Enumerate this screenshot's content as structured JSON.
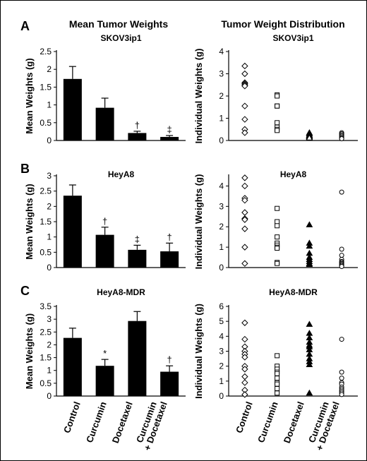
{
  "header": {
    "left_title": "Mean Tumor Weights",
    "right_title": "Tumor Weight Distribution"
  },
  "panel_labels": [
    "A",
    "B",
    "C"
  ],
  "x_categories": [
    "Control",
    "Curcumin",
    "Docetaxel",
    "Curcumin",
    "+ Docetaxel"
  ],
  "chart_data": [
    {
      "type": "bar",
      "title": "SKOV3ip1",
      "ylabel": "Mean Weights (g)",
      "ylim": [
        0,
        2.5
      ],
      "yticks": [
        "0",
        "0.5",
        "1",
        "1.5",
        "2",
        "2.5"
      ],
      "categories": [
        "Control",
        "Curcumin",
        "Docetaxel",
        "Curcumin + Docetaxel"
      ],
      "values": [
        1.73,
        0.92,
        0.21,
        0.1
      ],
      "errors": [
        0.35,
        0.27,
        0.05,
        0.04
      ],
      "annotations": [
        "",
        "",
        "†",
        "‡"
      ]
    },
    {
      "type": "scatter",
      "title": "SKOV3ip1",
      "ylabel": "Individual Weights (g)",
      "ylim": [
        0,
        4
      ],
      "yticks": [
        "0",
        "1",
        "2",
        "3",
        "4"
      ],
      "categories": [
        "Control",
        "Curcumin",
        "Docetaxel",
        "Curcumin + Docetaxel"
      ],
      "markers": [
        "diamond",
        "square",
        "triangle",
        "circle"
      ],
      "filled": [
        false,
        false,
        false,
        false
      ],
      "points": [
        [
          3.35,
          3.0,
          2.6,
          2.55,
          2.5,
          2.45,
          1.55,
          0.95,
          0.5,
          0.35
        ],
        [
          2.05,
          2.0,
          1.55,
          1.55,
          0.8,
          0.6,
          0.5,
          0.45
        ],
        [
          0.35,
          0.3,
          0.25,
          0.22,
          0.2,
          0.18,
          0.15,
          0.12
        ],
        [
          0.35,
          0.3,
          0.25,
          0.2,
          0.15,
          0.1,
          0.08
        ]
      ]
    },
    {
      "type": "bar",
      "title": "HeyA8",
      "ylabel": "Mean Weights (g)",
      "ylim": [
        0,
        3
      ],
      "yticks": [
        "0",
        "0.5",
        "1",
        "1.5",
        "2",
        "2.5",
        "3"
      ],
      "categories": [
        "Control",
        "Curcumin",
        "Docetaxel",
        "Curcumin + Docetaxel"
      ],
      "values": [
        2.35,
        1.07,
        0.58,
        0.53
      ],
      "errors": [
        0.35,
        0.25,
        0.15,
        0.27
      ],
      "annotations": [
        "",
        "†",
        "‡",
        "†"
      ]
    },
    {
      "type": "scatter",
      "title": "HeyA8",
      "ylabel": "Individual Weights (g)",
      "ylim": [
        0,
        4.5
      ],
      "yticks": [
        "0",
        "1",
        "2",
        "3",
        "4"
      ],
      "categories": [
        "Control",
        "Curcumin",
        "Docetaxel",
        "Curcumin + Docetaxel"
      ],
      "markers": [
        "diamond",
        "square",
        "triangle",
        "circle"
      ],
      "filled": [
        false,
        false,
        true,
        false
      ],
      "points": [
        [
          4.4,
          4.0,
          3.4,
          3.3,
          2.7,
          2.4,
          2.35,
          1.9,
          1.0,
          0.2
        ],
        [
          2.9,
          2.25,
          2.05,
          1.5,
          1.2,
          1.1,
          1.0,
          0.95,
          0.25,
          0.2
        ],
        [
          2.1,
          1.2,
          1.05,
          0.7,
          0.5,
          0.4,
          0.3,
          0.2,
          0.15
        ],
        [
          3.7,
          0.9,
          0.6,
          0.4,
          0.3,
          0.25,
          0.2,
          0.15,
          0.1,
          0.05
        ]
      ]
    },
    {
      "type": "bar",
      "title": "HeyA8-MDR",
      "ylabel": "Mean Weights (g)",
      "ylim": [
        0,
        3.5
      ],
      "yticks": [
        "0",
        "0.5",
        "1",
        "1.5",
        "2",
        "2.5",
        "3",
        "3.5"
      ],
      "categories": [
        "Control",
        "Curcumin",
        "Docetaxel",
        "Curcumin + Docetaxel"
      ],
      "values": [
        2.27,
        1.18,
        2.93,
        0.95
      ],
      "errors": [
        0.38,
        0.25,
        0.37,
        0.23
      ],
      "annotations": [
        "",
        "*",
        "",
        "†"
      ]
    },
    {
      "type": "scatter",
      "title": "HeyA8-MDR",
      "ylabel": "Individual Weights (g)",
      "ylim": [
        0,
        6
      ],
      "yticks": [
        "0",
        "1",
        "2",
        "3",
        "4",
        "5",
        "6"
      ],
      "categories": [
        "Control",
        "Curcumin",
        "Docetaxel",
        "Curcumin + Docetaxel"
      ],
      "markers": [
        "diamond",
        "square",
        "triangle",
        "circle"
      ],
      "filled": [
        false,
        false,
        true,
        false
      ],
      "points": [
        [
          4.9,
          3.8,
          3.3,
          3.0,
          2.8,
          2.6,
          2.0,
          1.8,
          1.3,
          0.9,
          0.4,
          0.1
        ],
        [
          2.7,
          2.0,
          1.8,
          1.6,
          1.5,
          1.2,
          0.9,
          0.8,
          0.5,
          0.2
        ],
        [
          4.8,
          4.2,
          3.9,
          3.6,
          3.4,
          3.3,
          3.1,
          2.8,
          2.5,
          2.3,
          2.1,
          0.2
        ],
        [
          3.8,
          1.6,
          1.2,
          0.9,
          0.8,
          0.6,
          0.5,
          0.4,
          0.3,
          0.2,
          0.1
        ]
      ]
    }
  ]
}
